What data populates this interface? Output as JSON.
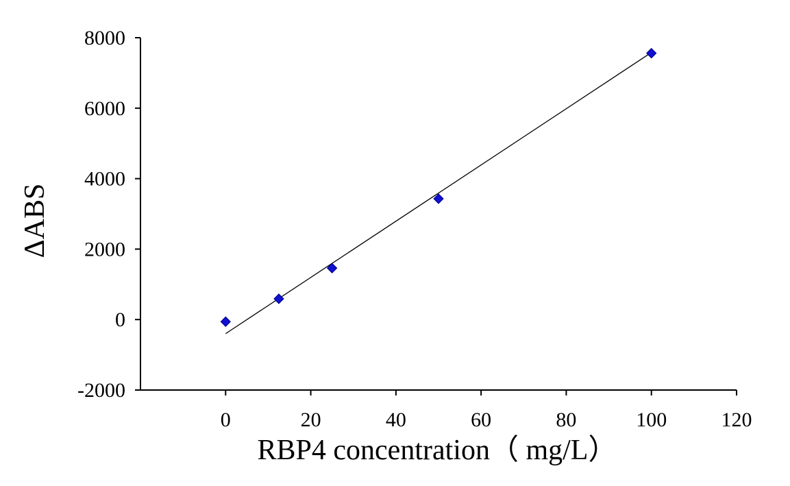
{
  "chart_data": {
    "type": "scatter",
    "title": "",
    "xlabel": "RBP4 concentration（ mg/L）",
    "ylabel": "ΔABS",
    "xlim": [
      -20,
      120
    ],
    "ylim": [
      -2000,
      8000
    ],
    "xticks": [
      0,
      20,
      40,
      60,
      80,
      100,
      120
    ],
    "yticks": [
      -2000,
      0,
      2000,
      4000,
      6000,
      8000
    ],
    "xtick_labels": [
      "0",
      "20",
      "40",
      "60",
      "80",
      "100",
      "120"
    ],
    "ytick_labels": [
      "-2000",
      "0",
      "2000",
      "4000",
      "6000",
      "8000"
    ],
    "grid": false,
    "legend": "none",
    "series": [
      {
        "marker": "diamond",
        "color": "#1010d0",
        "x": [
          0,
          12.5,
          25,
          50,
          100
        ],
        "y": [
          -60,
          590,
          1460,
          3430,
          7560
        ]
      }
    ],
    "trendline": {
      "type": "linear",
      "color": "#000000",
      "x": [
        0,
        100
      ],
      "y": [
        -400,
        7580
      ]
    }
  }
}
